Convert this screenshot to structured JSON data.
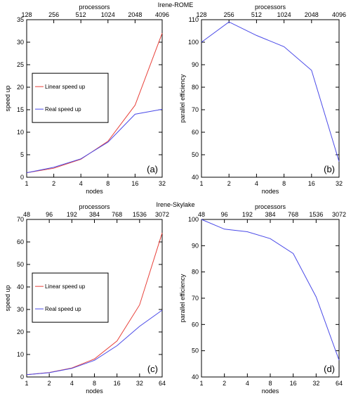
{
  "sections": [
    {
      "title": "Irene-ROME"
    },
    {
      "title": "Irene-Skylake"
    }
  ],
  "colors": {
    "linear": "#e8413a",
    "real": "#4a4ae8",
    "axis": "#000000"
  },
  "chart_data": [
    {
      "type": "line",
      "panel_label": "(a)",
      "xlabel": "nodes",
      "ylabel": "speed up",
      "top_axis_label": "processors",
      "categories": [
        "1",
        "2",
        "4",
        "8",
        "16",
        "32"
      ],
      "top_categories": [
        "128",
        "256",
        "512",
        "1024",
        "2048",
        "4096"
      ],
      "ylim": [
        0,
        35
      ],
      "yticks": [
        0,
        5,
        10,
        15,
        20,
        25,
        30,
        35
      ],
      "series": [
        {
          "name": "Linear speed up",
          "color": "#e8413a",
          "values": [
            1,
            2,
            4,
            8,
            16,
            32
          ]
        },
        {
          "name": "Real speed up",
          "color": "#4a4ae8",
          "values": [
            1,
            2.2,
            4.1,
            7.8,
            14,
            15.1
          ]
        }
      ],
      "legend": "left"
    },
    {
      "type": "line",
      "panel_label": "(b)",
      "xlabel": "nodes",
      "ylabel": "parallel efficiency",
      "top_axis_label": "processors",
      "categories": [
        "1",
        "2",
        "4",
        "8",
        "16",
        "32"
      ],
      "top_categories": [
        "128",
        "256",
        "512",
        "1024",
        "2048",
        "4096"
      ],
      "ylim": [
        40,
        110
      ],
      "yticks": [
        40,
        50,
        60,
        70,
        80,
        90,
        100,
        110
      ],
      "series": [
        {
          "name": "",
          "color": "#4a4ae8",
          "values": [
            100,
            109,
            103,
            98,
            87.5,
            47
          ]
        }
      ]
    },
    {
      "type": "line",
      "panel_label": "(c)",
      "xlabel": "nodes",
      "ylabel": "speed up",
      "top_axis_label": "processors",
      "categories": [
        "1",
        "2",
        "4",
        "8",
        "16",
        "32",
        "64"
      ],
      "top_categories": [
        "48",
        "96",
        "192",
        "384",
        "768",
        "1536",
        "3072"
      ],
      "ylim": [
        0,
        70
      ],
      "yticks": [
        0,
        10,
        20,
        30,
        40,
        50,
        60,
        70
      ],
      "series": [
        {
          "name": "Linear speed up",
          "color": "#e8413a",
          "values": [
            1,
            2,
            4,
            8,
            16,
            32,
            64
          ]
        },
        {
          "name": "Real speed up",
          "color": "#4a4ae8",
          "values": [
            1,
            1.9,
            3.8,
            7.4,
            13.9,
            22.5,
            29.7
          ]
        }
      ],
      "legend": "left"
    },
    {
      "type": "line",
      "panel_label": "(d)",
      "xlabel": "nodes",
      "ylabel": "parallel efficiency",
      "top_axis_label": "processors",
      "categories": [
        "1",
        "2",
        "4",
        "8",
        "16",
        "32",
        "64"
      ],
      "top_categories": [
        "48",
        "96",
        "192",
        "384",
        "768",
        "1536",
        "3072"
      ],
      "ylim": [
        40,
        100
      ],
      "yticks": [
        40,
        50,
        60,
        70,
        80,
        90,
        100
      ],
      "series": [
        {
          "name": "",
          "color": "#4a4ae8",
          "values": [
            100,
            96.3,
            95.3,
            92.7,
            87,
            70.5,
            46.4
          ]
        }
      ]
    }
  ]
}
